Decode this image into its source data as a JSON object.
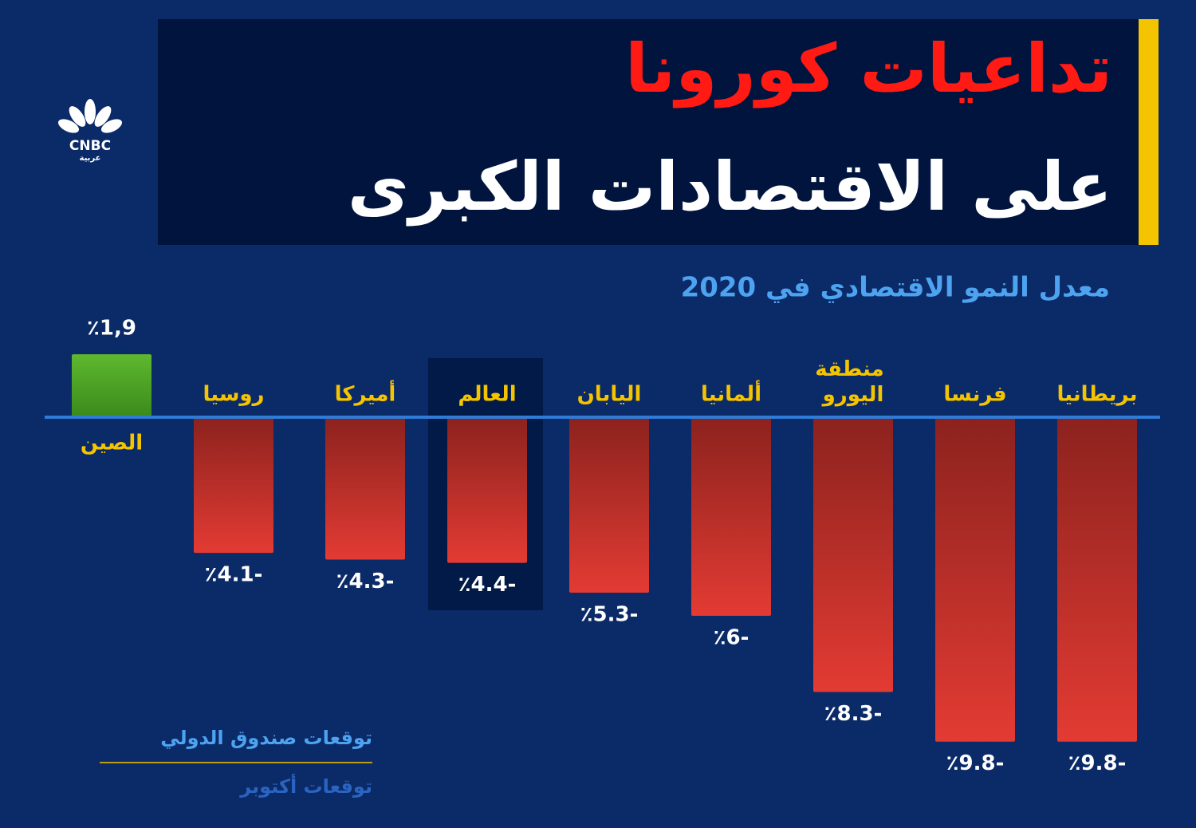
{
  "logo": {
    "name": "CNBC",
    "sub": "عربية"
  },
  "chart_data": {
    "type": "bar",
    "title": "تداعيات كورونا",
    "subtitle": "على الاقتصادات الكبرى",
    "axis_title": "معدل النمو الاقتصادي في 2020",
    "categories": [
      "الصين",
      "روسيا",
      "أميركا",
      "العالم",
      "اليابان",
      "ألمانيا",
      "منطقة اليورو",
      "فرنسا",
      "بريطانيا"
    ],
    "values": [
      1.9,
      -4.1,
      -4.3,
      -4.4,
      -5.3,
      -6,
      -8.3,
      -9.8,
      -9.8
    ],
    "value_labels": [
      "٪1,9",
      "٪4.1-",
      "٪4.3-",
      "٪4.4-",
      "٪5.3-",
      "٪6-",
      "٪8.3-",
      "٪9.8-",
      "٪9.8-"
    ],
    "color": "#e03a32",
    "positive_color": "#4ea82a",
    "highlight": "العالم",
    "ylim": [
      -10,
      2
    ],
    "notes": [
      "توقعات صندوق الدولي",
      "توقعات أكتوبر"
    ]
  }
}
